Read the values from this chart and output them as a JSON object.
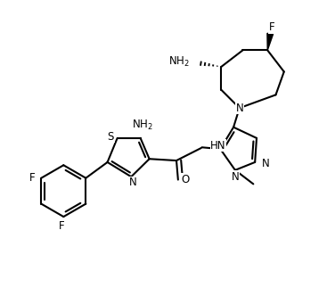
{
  "background_color": "#ffffff",
  "line_color": "#000000",
  "line_width": 1.5,
  "font_size": 8.5,
  "figsize": [
    3.76,
    3.32
  ],
  "dpi": 100,
  "xlim": [
    0,
    10
  ],
  "ylim": [
    0,
    8.8
  ]
}
